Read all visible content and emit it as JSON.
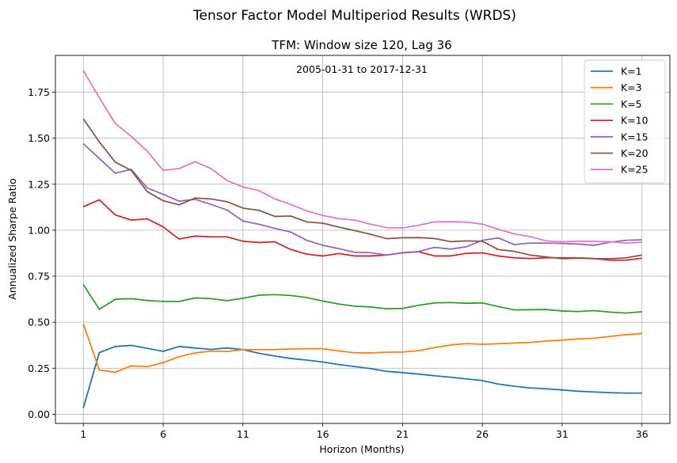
{
  "figure": {
    "suptitle": "Tensor Factor Model Multiperiod Results (WRDS)"
  },
  "chart_data": {
    "type": "line",
    "title": "TFM: Window size 120, Lag 36",
    "annotation": "2005-01-31 to 2017-12-31",
    "xlabel": "Horizon (Months)",
    "ylabel": "Annualized Sharpe Ratio",
    "xlim": [
      -0.75,
      37.75
    ],
    "ylim": [
      -0.05,
      1.95
    ],
    "xticks": [
      1,
      6,
      11,
      16,
      21,
      26,
      31,
      36
    ],
    "yticks": [
      0.0,
      0.25,
      0.5,
      0.75,
      1.0,
      1.25,
      1.5,
      1.75
    ],
    "ytick_labels": [
      "0.00",
      "0.25",
      "0.50",
      "0.75",
      "1.00",
      "1.25",
      "1.50",
      "1.75"
    ],
    "grid": true,
    "legend_position": "top-right",
    "x": [
      1,
      2,
      3,
      4,
      5,
      6,
      7,
      8,
      9,
      10,
      11,
      12,
      13,
      14,
      15,
      16,
      17,
      18,
      19,
      20,
      21,
      22,
      23,
      24,
      25,
      26,
      27,
      28,
      29,
      30,
      31,
      32,
      33,
      34,
      35,
      36
    ],
    "series": [
      {
        "name": "K=1",
        "color": "#1f77b4",
        "values": [
          0.035,
          0.335,
          0.368,
          0.374,
          0.358,
          0.342,
          0.368,
          0.36,
          0.352,
          0.36,
          0.351,
          0.331,
          0.316,
          0.303,
          0.294,
          0.284,
          0.27,
          0.259,
          0.248,
          0.233,
          0.226,
          0.218,
          0.209,
          0.201,
          0.192,
          0.183,
          0.164,
          0.152,
          0.143,
          0.138,
          0.132,
          0.125,
          0.121,
          0.117,
          0.115,
          0.115
        ]
      },
      {
        "name": "K=3",
        "color": "#ff7f0e",
        "values": [
          0.492,
          0.24,
          0.228,
          0.263,
          0.258,
          0.28,
          0.313,
          0.333,
          0.343,
          0.341,
          0.351,
          0.351,
          0.351,
          0.355,
          0.356,
          0.356,
          0.344,
          0.334,
          0.333,
          0.337,
          0.338,
          0.345,
          0.362,
          0.376,
          0.384,
          0.38,
          0.383,
          0.387,
          0.39,
          0.398,
          0.403,
          0.409,
          0.413,
          0.423,
          0.432,
          0.439
        ]
      },
      {
        "name": "K=5",
        "color": "#2ca02c",
        "values": [
          0.705,
          0.57,
          0.625,
          0.628,
          0.618,
          0.613,
          0.613,
          0.632,
          0.628,
          0.617,
          0.63,
          0.647,
          0.65,
          0.645,
          0.634,
          0.615,
          0.599,
          0.587,
          0.583,
          0.573,
          0.575,
          0.592,
          0.605,
          0.607,
          0.603,
          0.605,
          0.585,
          0.567,
          0.568,
          0.569,
          0.561,
          0.558,
          0.563,
          0.555,
          0.55,
          0.557
        ]
      },
      {
        "name": "K=10",
        "color": "#d62728",
        "values": [
          1.128,
          1.165,
          1.083,
          1.055,
          1.062,
          1.018,
          0.952,
          0.968,
          0.964,
          0.964,
          0.94,
          0.933,
          0.937,
          0.895,
          0.87,
          0.86,
          0.873,
          0.86,
          0.86,
          0.865,
          0.877,
          0.883,
          0.86,
          0.86,
          0.874,
          0.877,
          0.86,
          0.85,
          0.846,
          0.85,
          0.85,
          0.85,
          0.846,
          0.837,
          0.837,
          0.848
        ]
      },
      {
        "name": "K=15",
        "color": "#9467bd",
        "values": [
          1.47,
          1.39,
          1.31,
          1.33,
          1.23,
          1.195,
          1.158,
          1.168,
          1.14,
          1.11,
          1.05,
          1.032,
          1.01,
          0.99,
          0.945,
          0.918,
          0.9,
          0.88,
          0.878,
          0.865,
          0.878,
          0.884,
          0.907,
          0.897,
          0.91,
          0.945,
          0.958,
          0.922,
          0.93,
          0.93,
          0.928,
          0.925,
          0.918,
          0.935,
          0.945,
          0.948
        ]
      },
      {
        "name": "K=20",
        "color": "#8c564b",
        "values": [
          1.605,
          1.48,
          1.37,
          1.325,
          1.21,
          1.16,
          1.138,
          1.175,
          1.17,
          1.155,
          1.12,
          1.108,
          1.075,
          1.077,
          1.045,
          1.038,
          1.017,
          0.998,
          0.978,
          0.954,
          0.959,
          0.96,
          0.955,
          0.938,
          0.942,
          0.94,
          0.895,
          0.885,
          0.865,
          0.855,
          0.845,
          0.848,
          0.845,
          0.845,
          0.85,
          0.865
        ]
      },
      {
        "name": "K=25",
        "color": "#e377c2",
        "values": [
          1.867,
          1.72,
          1.58,
          1.51,
          1.43,
          1.325,
          1.335,
          1.372,
          1.335,
          1.27,
          1.235,
          1.215,
          1.17,
          1.14,
          1.105,
          1.08,
          1.063,
          1.055,
          1.033,
          1.014,
          1.012,
          1.027,
          1.045,
          1.046,
          1.044,
          1.033,
          1.005,
          0.98,
          0.965,
          0.942,
          0.937,
          0.94,
          0.94,
          0.937,
          0.93,
          0.935
        ]
      }
    ]
  }
}
